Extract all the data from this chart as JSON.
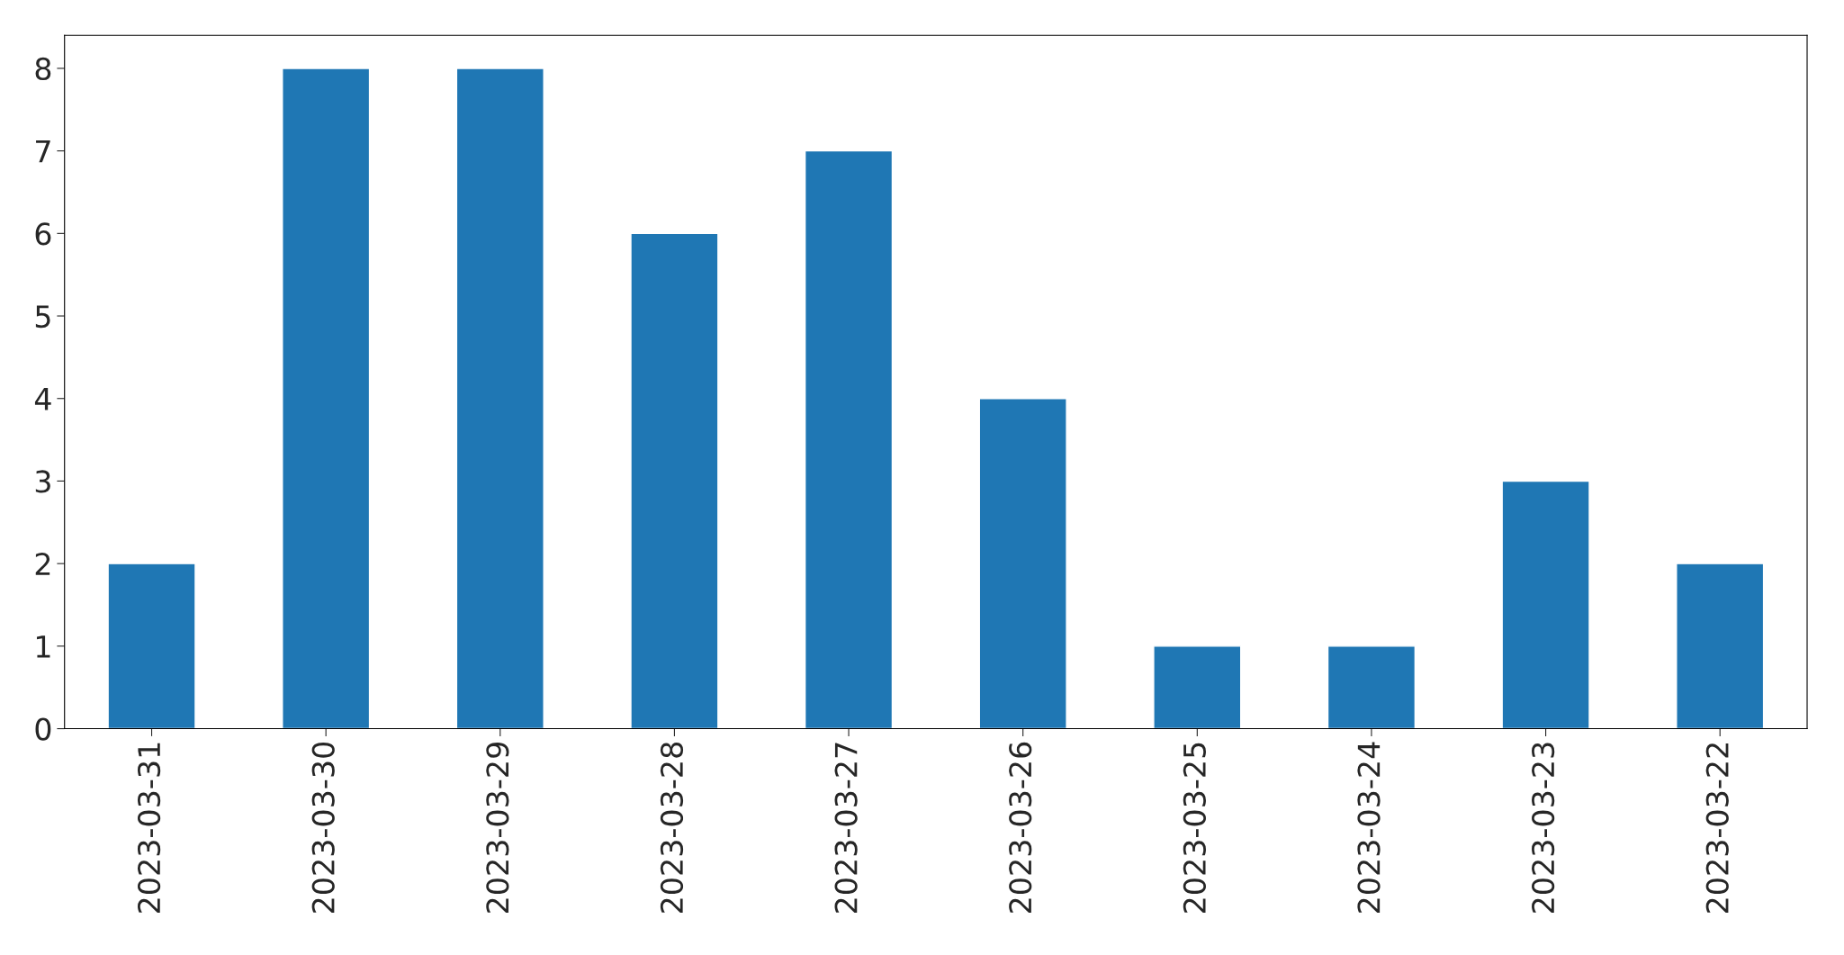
{
  "chart_data": {
    "type": "bar",
    "categories": [
      "2023-03-31",
      "2023-03-30",
      "2023-03-29",
      "2023-03-28",
      "2023-03-27",
      "2023-03-26",
      "2023-03-25",
      "2023-03-24",
      "2023-03-23",
      "2023-03-22"
    ],
    "values": [
      2,
      8,
      8,
      6,
      7,
      4,
      1,
      1,
      3,
      2
    ],
    "color": "#1f77b4",
    "ylim": [
      0,
      8.4
    ],
    "yticks": [
      0,
      1,
      2,
      3,
      4,
      5,
      6,
      7,
      8
    ],
    "grid": false
  }
}
